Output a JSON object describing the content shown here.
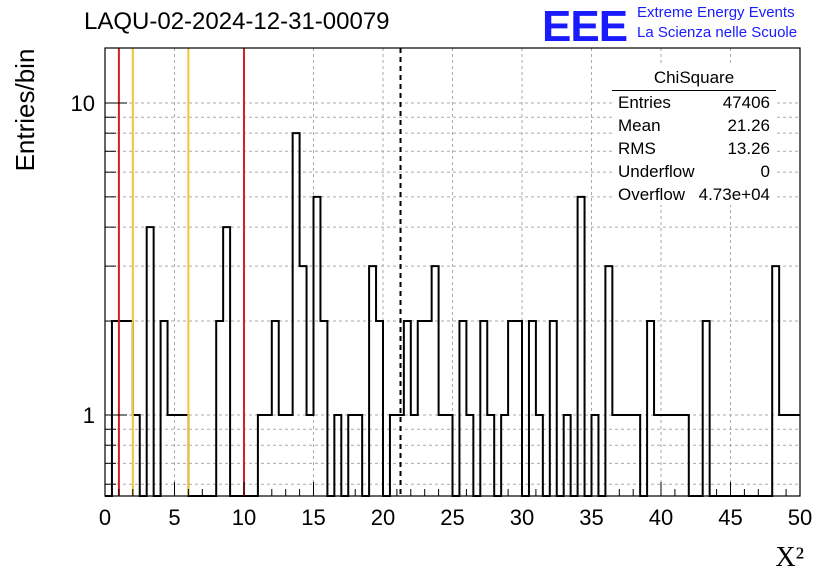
{
  "title": "LAQU-02-2024-12-31-00079",
  "logo": {
    "text": "EEE",
    "line1": "Extreme Energy Events",
    "line2": "La Scienza nelle Scuole",
    "color": "#1a1aff"
  },
  "stats_box": {
    "title": "ChiSquare",
    "rows": [
      {
        "key": "Entries",
        "value": "47406"
      },
      {
        "key": "Mean",
        "value": "21.26"
      },
      {
        "key": "RMS",
        "value": "13.26"
      },
      {
        "key": "Underflow",
        "value": "0"
      },
      {
        "key": "Overflow",
        "value": "4.73e+04"
      }
    ]
  },
  "chart_data": {
    "type": "histogram",
    "xlabel": "X²",
    "ylabel": "Entries/bin",
    "xlim": [
      0,
      50
    ],
    "ylim": [
      0.55,
      15
    ],
    "log_y": true,
    "grid": true,
    "x_ticks": [
      0,
      5,
      10,
      15,
      20,
      25,
      30,
      35,
      40,
      45,
      50
    ],
    "y_ticks": [
      1,
      10
    ],
    "bin_width": 0.5,
    "bins": [
      [
        0.0,
        0
      ],
      [
        0.5,
        2
      ],
      [
        1.0,
        2
      ],
      [
        1.5,
        2
      ],
      [
        2.0,
        1
      ],
      [
        2.5,
        0
      ],
      [
        3.0,
        4
      ],
      [
        3.5,
        0
      ],
      [
        4.0,
        2
      ],
      [
        4.5,
        1
      ],
      [
        5.0,
        1
      ],
      [
        5.5,
        1
      ],
      [
        6.0,
        0
      ],
      [
        6.5,
        0
      ],
      [
        7.0,
        0
      ],
      [
        7.5,
        0
      ],
      [
        8.0,
        2
      ],
      [
        8.5,
        4
      ],
      [
        9.0,
        0
      ],
      [
        9.5,
        0
      ],
      [
        10.0,
        0
      ],
      [
        10.5,
        0
      ],
      [
        11.0,
        1
      ],
      [
        11.5,
        1
      ],
      [
        12.0,
        2
      ],
      [
        12.5,
        1
      ],
      [
        13.0,
        1
      ],
      [
        13.5,
        8
      ],
      [
        14.0,
        3
      ],
      [
        14.5,
        1
      ],
      [
        15.0,
        5
      ],
      [
        15.5,
        2
      ],
      [
        16.0,
        0
      ],
      [
        16.5,
        1
      ],
      [
        17.0,
        0
      ],
      [
        17.5,
        1
      ],
      [
        18.0,
        1
      ],
      [
        18.5,
        0
      ],
      [
        19.0,
        3
      ],
      [
        19.5,
        2
      ],
      [
        20.0,
        0
      ],
      [
        20.5,
        1
      ],
      [
        21.0,
        1
      ],
      [
        21.5,
        2
      ],
      [
        22.0,
        1
      ],
      [
        22.5,
        2
      ],
      [
        23.0,
        2
      ],
      [
        23.5,
        3
      ],
      [
        24.0,
        1
      ],
      [
        24.5,
        1
      ],
      [
        25.0,
        0
      ],
      [
        25.5,
        2
      ],
      [
        26.0,
        1
      ],
      [
        26.5,
        0
      ],
      [
        27.0,
        2
      ],
      [
        27.5,
        1
      ],
      [
        28.0,
        0
      ],
      [
        28.5,
        1
      ],
      [
        29.0,
        2
      ],
      [
        29.5,
        2
      ],
      [
        30.0,
        0
      ],
      [
        30.5,
        2
      ],
      [
        31.0,
        1
      ],
      [
        31.5,
        0
      ],
      [
        32.0,
        2
      ],
      [
        32.5,
        0
      ],
      [
        33.0,
        1
      ],
      [
        33.5,
        0
      ],
      [
        34.0,
        5
      ],
      [
        34.5,
        0
      ],
      [
        35.0,
        1
      ],
      [
        35.5,
        0
      ],
      [
        36.0,
        3
      ],
      [
        36.5,
        1
      ],
      [
        37.0,
        1
      ],
      [
        37.5,
        1
      ],
      [
        38.0,
        1
      ],
      [
        38.5,
        0
      ],
      [
        39.0,
        2
      ],
      [
        39.5,
        1
      ],
      [
        40.0,
        1
      ],
      [
        40.5,
        1
      ],
      [
        41.0,
        1
      ],
      [
        41.5,
        1
      ],
      [
        42.0,
        0
      ],
      [
        42.5,
        0
      ],
      [
        43.0,
        2
      ],
      [
        43.5,
        0
      ],
      [
        44.0,
        0
      ],
      [
        44.5,
        0
      ],
      [
        45.0,
        0
      ],
      [
        45.5,
        0
      ],
      [
        46.0,
        0
      ],
      [
        46.5,
        0
      ],
      [
        47.0,
        0
      ],
      [
        47.5,
        0
      ],
      [
        48.0,
        3
      ],
      [
        48.5,
        1
      ],
      [
        49.0,
        1
      ],
      [
        49.5,
        1
      ]
    ],
    "vertical_lines": [
      {
        "x": 1.0,
        "color": "#d42020",
        "style": "solid"
      },
      {
        "x": 2.0,
        "color": "#f2c431",
        "style": "solid"
      },
      {
        "x": 6.0,
        "color": "#f2c431",
        "style": "solid"
      },
      {
        "x": 10.0,
        "color": "#d42020",
        "style": "solid"
      },
      {
        "x": 21.26,
        "color": "#000000",
        "style": "dashed"
      }
    ]
  }
}
